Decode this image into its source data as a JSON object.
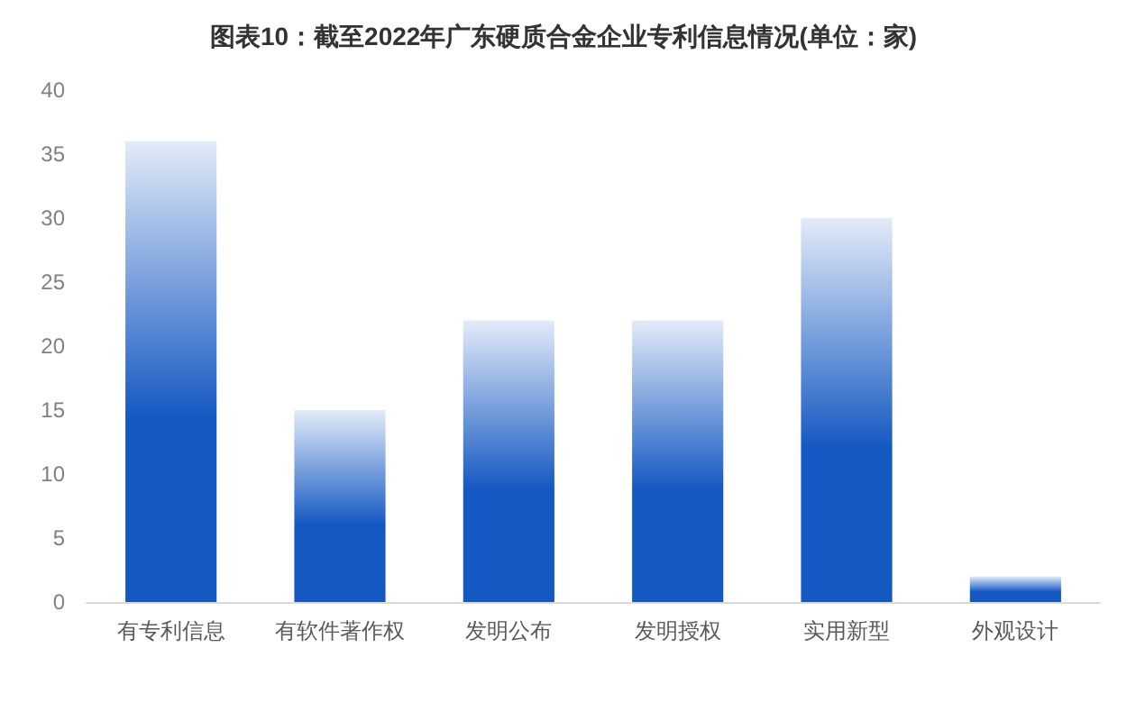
{
  "chart_data": {
    "type": "bar",
    "title": "图表10：截至2022年广东硬质合金企业专利信息情况(单位：家)",
    "categories": [
      "有专利信息",
      "有软件著作权",
      "发明公布",
      "发明授权",
      "实用新型",
      "外观设计"
    ],
    "values": [
      36,
      15,
      22,
      22,
      30,
      2
    ],
    "color": "#1458c2",
    "ylim": [
      0,
      40
    ],
    "yticks": [
      0,
      5,
      10,
      15,
      20,
      25,
      30,
      35,
      40
    ],
    "grid": false
  }
}
